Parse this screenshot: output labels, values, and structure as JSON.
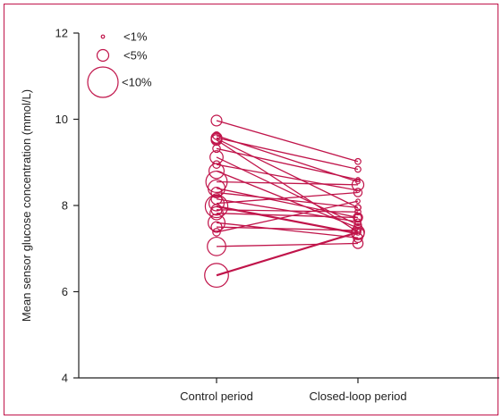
{
  "colors": {
    "series": "#c0144a",
    "frame": "#c0144a",
    "axis": "#222222"
  },
  "chart_data": {
    "type": "scatter",
    "subtype": "paired-line bubble plot",
    "title": "",
    "xlabel": "",
    "ylabel": "Mean sensor glucose concentration (mmol/L)",
    "categories": [
      "Control period",
      "Closed-loop period"
    ],
    "ylim": [
      4,
      12
    ],
    "yticks": [
      4,
      6,
      8,
      10,
      12
    ],
    "grid": false,
    "legend_position": "top-left",
    "legend": [
      {
        "label": "<1%",
        "size": 1
      },
      {
        "label": "<5%",
        "size": 5
      },
      {
        "label": "<10%",
        "size": 10
      }
    ],
    "pairs": [
      {
        "control": 9.97,
        "closed_loop": 9.02,
        "size": 2
      },
      {
        "control": 9.62,
        "closed_loop": 8.55,
        "size": 1
      },
      {
        "control": 9.57,
        "closed_loop": 8.84,
        "size": 2
      },
      {
        "control": 9.55,
        "closed_loop": 7.95,
        "size": 2
      },
      {
        "control": 9.52,
        "closed_loop": 7.38,
        "size": 2
      },
      {
        "control": 9.32,
        "closed_loop": 8.6,
        "size": 1
      },
      {
        "control": 9.12,
        "closed_loop": 7.55,
        "size": 3
      },
      {
        "control": 8.95,
        "closed_loop": 8.35,
        "size": 1
      },
      {
        "control": 8.8,
        "closed_loop": 7.48,
        "size": 4
      },
      {
        "control": 8.55,
        "closed_loop": 8.48,
        "size": 8
      },
      {
        "control": 8.4,
        "closed_loop": 7.72,
        "size": 5
      },
      {
        "control": 8.3,
        "closed_loop": 7.95,
        "size": 2
      },
      {
        "control": 8.15,
        "closed_loop": 7.62,
        "size": 2
      },
      {
        "control": 8.05,
        "closed_loop": 8.3,
        "size": 4
      },
      {
        "control": 7.98,
        "closed_loop": 7.35,
        "size": 9
      },
      {
        "control": 7.9,
        "closed_loop": 7.85,
        "size": 2
      },
      {
        "control": 7.82,
        "closed_loop": 7.72,
        "size": 3
      },
      {
        "control": 7.6,
        "closed_loop": 7.25,
        "size": 5
      },
      {
        "control": 7.5,
        "closed_loop": 7.42,
        "size": 2
      },
      {
        "control": 7.38,
        "closed_loop": 8.1,
        "size": 1
      },
      {
        "control": 7.05,
        "closed_loop": 7.12,
        "size": 6
      },
      {
        "control": 6.38,
        "closed_loop": 7.38,
        "size": 10
      }
    ]
  }
}
